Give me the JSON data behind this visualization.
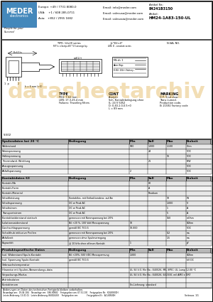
{
  "title": "HM24-1A83-150-UL",
  "artikel_nr": "84241B3150",
  "header_left": [
    "Europe: +49 / 7731 8080-0",
    "USA:    +1 / 608 285-0711",
    "Asia:   +852 / 2955 1682"
  ],
  "header_email": [
    "Email: info@meder.com",
    "Email: salesusa@meder.com",
    "Email: salesasia@meder.com"
  ],
  "section1_rows": [
    [
      "Widerstand",
      "",
      "900",
      "1.000",
      "1.100",
      "Ohm"
    ],
    [
      "Nennspannung",
      "",
      "",
      "24",
      "",
      "VDC"
    ],
    [
      "Haltespannung",
      "",
      "",
      "",
      "16",
      "VDC"
    ],
    [
      "Thermalwid. Wicklung",
      "",
      "",
      "21",
      "",
      "K/W"
    ],
    [
      "Anzugsspannung",
      "",
      "",
      "",
      "",
      "VDC"
    ],
    [
      "Abfallspannung",
      "",
      "2",
      "",
      "",
      "VDC"
    ]
  ],
  "section2_rows": [
    [
      "Kontakt-Nb",
      "",
      "",
      "80",
      "",
      ""
    ],
    [
      "Kontakt-Form",
      "",
      "",
      "A",
      "",
      ""
    ],
    [
      "Kontakt-Material",
      "",
      "",
      "Rhodium",
      "",
      ""
    ],
    [
      "Schaltleistung",
      "Kontaktlos. mit Entlad.kondenz. auf Ansch. 100 kOhm Ableit.widerst. am Anschl.",
      "",
      "",
      "10",
      "W"
    ],
    [
      "Schaltspannung",
      "DC or Peak AC",
      "",
      "",
      "1.000",
      "V"
    ],
    [
      "Schaltstrom",
      "DC or Peak AC",
      "",
      "",
      "1",
      "A"
    ],
    [
      "Transportstrom",
      "DC or Peak AC",
      "",
      "",
      "5",
      "A"
    ],
    [
      "Kontaktwiderstand statisch",
      "gemessen mit Nennspannung bei 20%",
      "",
      "",
      "150",
      "mOhm"
    ],
    [
      "Isolationswiderstand",
      "Bil.+20 %, 100 Volt Messspannung",
      "10",
      "",
      "",
      "GOhm"
    ],
    [
      "Durchschlagspannung",
      "gemäß IEC 700-5",
      "10.000",
      "",
      "",
      "VDC"
    ],
    [
      "Schalthub inklusive Prellen",
      "gemessen mit Nennspannung bei 20%",
      "",
      "",
      "0.2",
      "ms"
    ],
    [
      "Abfallzeit",
      "gemessen ohne Spulenerregung",
      "",
      "",
      "1.5",
      "ms"
    ],
    [
      "Kapazität",
      "@ 10 kHz ohne offenen Kontakt",
      "1",
      "",
      "",
      "pF"
    ]
  ],
  "section3_rows": [
    [
      "Isol. Widerstand Spule-Kontakt",
      "Bil.+20%, 500 VDC Messspannung",
      "1.000",
      "",
      "",
      "GOhm"
    ],
    [
      "Isol. Spannung Spule-Kontakt",
      "gemäß IEC 700-5",
      "",
      "",
      "",
      "kV DC"
    ],
    [
      "Gebrauchstemperatur",
      "",
      "",
      "",
      "",
      ""
    ],
    [
      "Hinweise mit Spulen-/Anwendungs-data",
      "",
      "UL 94 V-0; File No.: E40026; MIL SPEC: UL Lamp 12.00 °C",
      "",
      "",
      ""
    ],
    [
      "Verpackungs-Modus",
      "",
      "UL 94 V-0; File No.: E40026; E42030; mil AMO e DRT\nCE 93/42 File No. EV 2620; MIL PO; kein Typ d.Richtlinie",
      "",
      "",
      ""
    ],
    [
      "Antriebsdaten",
      "",
      "",
      "",
      "",
      ""
    ],
    [
      "Kontaktmom",
      "",
      "En-Lieferung: standard",
      "",
      "",
      ""
    ]
  ],
  "watermark_text": "DATASHEETARCHIV",
  "watermark_color": "#d4920a",
  "bg_color": "#ffffff"
}
